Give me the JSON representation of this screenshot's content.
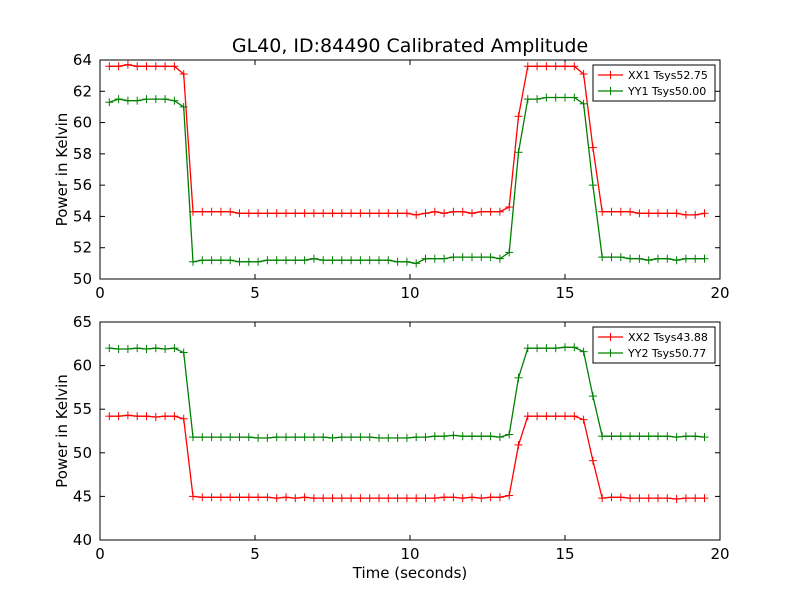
{
  "title": "GL40, ID:84490 Calibrated Amplitude",
  "chart_data": [
    {
      "type": "line",
      "title": "GL40, ID:84490 Calibrated Amplitude",
      "xlabel": "",
      "ylabel": "Power in Kelvin",
      "xlim": [
        0,
        20
      ],
      "ylim": [
        50,
        64
      ],
      "xticks": [
        "0",
        "5",
        "10",
        "15",
        "20"
      ],
      "yticks": [
        "50",
        "52",
        "54",
        "56",
        "58",
        "60",
        "62",
        "64"
      ],
      "legend_position": "top-right",
      "x": [
        0.3,
        0.6,
        0.9,
        1.2,
        1.5,
        1.8,
        2.1,
        2.4,
        2.7,
        3.0,
        3.3,
        3.6,
        3.9,
        4.2,
        4.5,
        4.8,
        5.1,
        5.4,
        5.7,
        6.0,
        6.3,
        6.6,
        6.9,
        7.2,
        7.5,
        7.8,
        8.1,
        8.4,
        8.7,
        9.0,
        9.3,
        9.6,
        9.9,
        10.2,
        10.5,
        10.8,
        11.1,
        11.4,
        11.7,
        12.0,
        12.3,
        12.6,
        12.9,
        13.2,
        13.5,
        13.8,
        14.1,
        14.4,
        14.7,
        15.0,
        15.3,
        15.6,
        15.9,
        16.2,
        16.5,
        16.8,
        17.1,
        17.4,
        17.7,
        18.0,
        18.3,
        18.6,
        18.9,
        19.2,
        19.5
      ],
      "series": [
        {
          "name": "XX1 Tsys52.75",
          "color": "#ff0000",
          "values": [
            63.6,
            63.6,
            63.7,
            63.6,
            63.6,
            63.6,
            63.6,
            63.6,
            63.1,
            54.3,
            54.3,
            54.3,
            54.3,
            54.3,
            54.2,
            54.2,
            54.2,
            54.2,
            54.2,
            54.2,
            54.2,
            54.2,
            54.2,
            54.2,
            54.2,
            54.2,
            54.2,
            54.2,
            54.2,
            54.2,
            54.2,
            54.2,
            54.2,
            54.1,
            54.2,
            54.3,
            54.2,
            54.3,
            54.3,
            54.2,
            54.3,
            54.3,
            54.3,
            54.6,
            60.4,
            63.6,
            63.6,
            63.6,
            63.6,
            63.6,
            63.6,
            63.1,
            58.4,
            54.3,
            54.3,
            54.3,
            54.3,
            54.2,
            54.2,
            54.2,
            54.2,
            54.2,
            54.1,
            54.1,
            54.2
          ]
        },
        {
          "name": "YY1 Tsys50.00",
          "color": "#008000",
          "values": [
            61.3,
            61.5,
            61.4,
            61.4,
            61.5,
            61.5,
            61.5,
            61.4,
            61.0,
            51.1,
            51.2,
            51.2,
            51.2,
            51.2,
            51.1,
            51.1,
            51.1,
            51.2,
            51.2,
            51.2,
            51.2,
            51.2,
            51.3,
            51.2,
            51.2,
            51.2,
            51.2,
            51.2,
            51.2,
            51.2,
            51.2,
            51.1,
            51.1,
            51.0,
            51.3,
            51.3,
            51.3,
            51.4,
            51.4,
            51.4,
            51.4,
            51.4,
            51.3,
            51.7,
            58.1,
            61.5,
            61.5,
            61.6,
            61.6,
            61.6,
            61.6,
            61.2,
            56.0,
            51.4,
            51.4,
            51.4,
            51.3,
            51.3,
            51.2,
            51.3,
            51.3,
            51.2,
            51.3,
            51.3,
            51.3
          ]
        }
      ]
    },
    {
      "type": "line",
      "title": "",
      "xlabel": "Time (seconds)",
      "ylabel": "Power in Kelvin",
      "xlim": [
        0,
        20
      ],
      "ylim": [
        40,
        65
      ],
      "xticks": [
        "0",
        "5",
        "10",
        "15",
        "20"
      ],
      "yticks": [
        "40",
        "45",
        "50",
        "55",
        "60",
        "65"
      ],
      "legend_position": "top-right",
      "x": [
        0.3,
        0.6,
        0.9,
        1.2,
        1.5,
        1.8,
        2.1,
        2.4,
        2.7,
        3.0,
        3.3,
        3.6,
        3.9,
        4.2,
        4.5,
        4.8,
        5.1,
        5.4,
        5.7,
        6.0,
        6.3,
        6.6,
        6.9,
        7.2,
        7.5,
        7.8,
        8.1,
        8.4,
        8.7,
        9.0,
        9.3,
        9.6,
        9.9,
        10.2,
        10.5,
        10.8,
        11.1,
        11.4,
        11.7,
        12.0,
        12.3,
        12.6,
        12.9,
        13.2,
        13.5,
        13.8,
        14.1,
        14.4,
        14.7,
        15.0,
        15.3,
        15.6,
        15.9,
        16.2,
        16.5,
        16.8,
        17.1,
        17.4,
        17.7,
        18.0,
        18.3,
        18.6,
        18.9,
        19.2,
        19.5
      ],
      "series": [
        {
          "name": "XX2 Tsys43.88",
          "color": "#ff0000",
          "values": [
            54.2,
            54.2,
            54.3,
            54.2,
            54.2,
            54.1,
            54.2,
            54.2,
            53.9,
            45.0,
            44.9,
            44.9,
            44.9,
            44.9,
            44.9,
            44.9,
            44.9,
            44.9,
            44.8,
            44.9,
            44.8,
            44.9,
            44.8,
            44.8,
            44.8,
            44.8,
            44.8,
            44.8,
            44.8,
            44.8,
            44.8,
            44.8,
            44.8,
            44.8,
            44.8,
            44.8,
            44.9,
            44.9,
            44.8,
            44.9,
            44.8,
            44.9,
            44.9,
            45.1,
            50.9,
            54.2,
            54.2,
            54.2,
            54.2,
            54.2,
            54.2,
            53.8,
            49.1,
            44.8,
            44.9,
            44.9,
            44.8,
            44.8,
            44.8,
            44.8,
            44.8,
            44.7,
            44.8,
            44.8,
            44.8
          ]
        },
        {
          "name": "YY2 Tsys50.77",
          "color": "#008000",
          "values": [
            62.0,
            61.9,
            61.9,
            62.0,
            61.9,
            62.0,
            61.9,
            62.0,
            61.5,
            51.8,
            51.8,
            51.8,
            51.8,
            51.8,
            51.8,
            51.8,
            51.7,
            51.7,
            51.8,
            51.8,
            51.8,
            51.8,
            51.8,
            51.8,
            51.7,
            51.8,
            51.8,
            51.8,
            51.8,
            51.7,
            51.7,
            51.7,
            51.7,
            51.8,
            51.8,
            51.9,
            51.9,
            52.0,
            51.9,
            51.9,
            51.9,
            51.9,
            51.8,
            52.1,
            58.6,
            62.0,
            62.0,
            62.0,
            62.0,
            62.1,
            62.1,
            61.6,
            56.5,
            51.9,
            51.9,
            51.9,
            51.9,
            51.9,
            51.9,
            51.9,
            51.9,
            51.8,
            51.9,
            51.9,
            51.8
          ]
        }
      ]
    }
  ]
}
